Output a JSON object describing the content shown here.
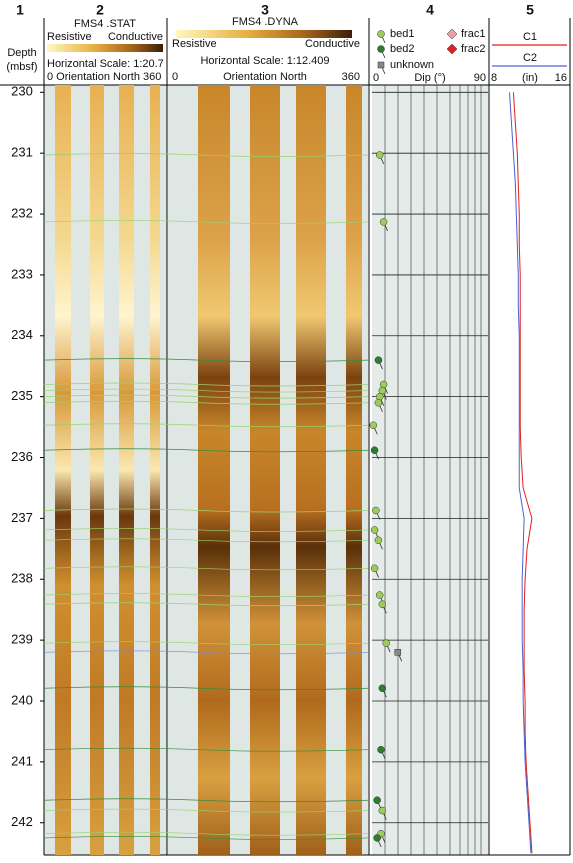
{
  "column_numbers": [
    "1",
    "2",
    "3",
    "4",
    "5"
  ],
  "depth": {
    "label": "Depth",
    "unit": "(mbsf)",
    "ylim": [
      229.88,
      242.53
    ],
    "ticks": [
      230,
      231,
      232,
      233,
      234,
      235,
      236,
      237,
      238,
      239,
      240,
      241,
      242
    ]
  },
  "track2": {
    "title": "FMS4 .STAT",
    "low": "Resistive",
    "high": "Conductive",
    "scale": "Horizontal Scale: 1:20.7",
    "axis": "0 Orientation North 360"
  },
  "track3": {
    "title": "FMS4 .DYNA",
    "low": "Resistive",
    "high": "Conductive",
    "scale": "Horizontal Scale:  1:12.409",
    "axis_min": "0",
    "axis_label": "Orientation North",
    "axis_max": "360"
  },
  "track4": {
    "legend": [
      {
        "name": "bed1",
        "color": "#9ccc5a",
        "shape": "circle"
      },
      {
        "name": "bed2",
        "color": "#2e7d32",
        "shape": "circle"
      },
      {
        "name": "unknown",
        "color": "#888888",
        "shape": "square"
      },
      {
        "name": "frac1",
        "color": "#e8a0a8",
        "shape": "diamond"
      },
      {
        "name": "frac2",
        "color": "#e02020",
        "shape": "diamond"
      }
    ],
    "axis_min": "0",
    "axis_label": "Dip (°)",
    "axis_max": "90",
    "xlim": [
      0,
      90
    ],
    "picks": [
      {
        "depth": 231.03,
        "dip": 6,
        "kind": 0
      },
      {
        "depth": 232.13,
        "dip": 9,
        "kind": 0
      },
      {
        "depth": 234.4,
        "dip": 5,
        "kind": 1
      },
      {
        "depth": 234.8,
        "dip": 9,
        "kind": 0
      },
      {
        "depth": 234.9,
        "dip": 8,
        "kind": 0
      },
      {
        "depth": 235.0,
        "dip": 6,
        "kind": 0
      },
      {
        "depth": 235.1,
        "dip": 5,
        "kind": 0
      },
      {
        "depth": 235.47,
        "dip": 1,
        "kind": 0
      },
      {
        "depth": 235.88,
        "dip": 2,
        "kind": 1
      },
      {
        "depth": 236.87,
        "dip": 3,
        "kind": 0
      },
      {
        "depth": 237.19,
        "dip": 2,
        "kind": 0
      },
      {
        "depth": 237.36,
        "dip": 5,
        "kind": 0
      },
      {
        "depth": 237.82,
        "dip": 2,
        "kind": 0
      },
      {
        "depth": 238.26,
        "dip": 6,
        "kind": 0
      },
      {
        "depth": 238.41,
        "dip": 8,
        "kind": 0
      },
      {
        "depth": 239.05,
        "dip": 11,
        "kind": 0
      },
      {
        "depth": 239.2,
        "dip": 20,
        "kind": 2
      },
      {
        "depth": 239.79,
        "dip": 8,
        "kind": 1
      },
      {
        "depth": 240.8,
        "dip": 7,
        "kind": 1
      },
      {
        "depth": 241.63,
        "dip": 4,
        "kind": 1
      },
      {
        "depth": 241.8,
        "dip": 8,
        "kind": 0
      },
      {
        "depth": 242.18,
        "dip": 7,
        "kind": 0
      },
      {
        "depth": 242.25,
        "dip": 4,
        "kind": 1
      }
    ]
  },
  "track5": {
    "axis_min": "8",
    "unit": "(in)",
    "axis_max": "16",
    "xlim": [
      8,
      16
    ],
    "depths": [
      230,
      230.5,
      231,
      231.5,
      232,
      232.5,
      233,
      233.5,
      234,
      234.5,
      235,
      235.5,
      236,
      236.5,
      237,
      237.5,
      238,
      238.5,
      239,
      239.5,
      240,
      240.5,
      241,
      241.5,
      242,
      242.5
    ],
    "series": [
      {
        "name": "C1",
        "color": "#e02020",
        "values": [
          10.4,
          10.6,
          10.8,
          10.9,
          11.0,
          11.0,
          11.1,
          11.1,
          11.1,
          11.1,
          11.1,
          11.1,
          11.2,
          11.4,
          12.3,
          11.8,
          11.6,
          11.5,
          11.5,
          11.5,
          11.6,
          11.6,
          11.7,
          11.9,
          12.1,
          12.3
        ]
      },
      {
        "name": "C2",
        "color": "#5060d0",
        "values": [
          10.0,
          10.2,
          10.4,
          10.6,
          10.7,
          10.8,
          10.9,
          10.9,
          11.0,
          11.0,
          11.0,
          11.0,
          11.0,
          11.0,
          11.5,
          11.4,
          11.3,
          11.3,
          11.3,
          11.4,
          11.4,
          11.5,
          11.6,
          11.8,
          12.0,
          12.2
        ]
      }
    ]
  }
}
